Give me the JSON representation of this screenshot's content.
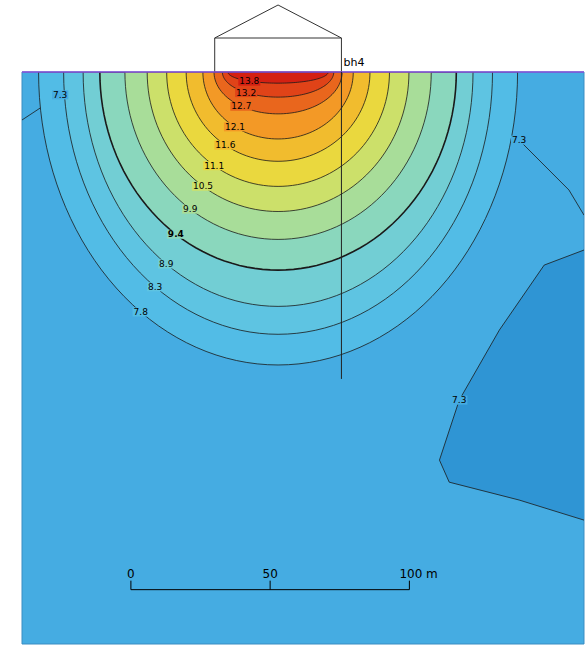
{
  "chart_data": {
    "type": "contour",
    "xlim": [
      -39.1,
      162.7
    ],
    "ylim": [
      0,
      205
    ],
    "tick_labels": false,
    "grid": false,
    "contours": [
      {
        "level": 7.8,
        "half_width": 86,
        "depth": 105
      },
      {
        "level": 8.3,
        "half_width": 77,
        "depth": 94
      },
      {
        "level": 8.9,
        "half_width": 70,
        "depth": 84
      },
      {
        "level": 9.4,
        "half_width": 64,
        "depth": 71
      },
      {
        "level": 9.9,
        "half_width": 55,
        "depth": 60
      },
      {
        "level": 10.5,
        "half_width": 47,
        "depth": 50
      },
      {
        "level": 11.1,
        "half_width": 40,
        "depth": 41
      },
      {
        "level": 11.6,
        "half_width": 33,
        "depth": 32
      },
      {
        "level": 12.1,
        "half_width": 27,
        "depth": 24
      },
      {
        "level": 12.7,
        "half_width": 23,
        "depth": 15
      },
      {
        "level": 13.2,
        "half_width": 20,
        "depth": 9
      },
      {
        "level": 13.8,
        "half_width": 18,
        "depth": 4
      }
    ],
    "open_contours": [
      {
        "level": 7.3,
        "points": [
          [
            -39.1,
            17.2
          ],
          [
            -25.4,
            8.2
          ],
          [
            -3.9,
            2.9
          ],
          [
            24.7,
            0.7
          ]
        ]
      },
      {
        "level": 7.3,
        "points": [
          [
            76.7,
            0.7
          ],
          [
            107.2,
            6.5
          ],
          [
            139.4,
            24.4
          ],
          [
            157.3,
            42.3
          ],
          [
            162.7,
            51.3
          ]
        ]
      },
      {
        "level": 7.3,
        "points": [
          [
            162.7,
            63.8
          ],
          [
            148.4,
            69.2
          ],
          [
            132.3,
            92.5
          ],
          [
            117.9,
            117.6
          ],
          [
            110.8,
            139.1
          ],
          [
            114.3,
            147
          ],
          [
            139.4,
            153.4
          ],
          [
            162.7,
            160.6
          ]
        ]
      }
    ],
    "building": {
      "x": [
        30.1,
        75.6
      ]
    },
    "borehole": {
      "label": "bh4",
      "x": 75.6,
      "depth": 110
    },
    "scale_bar": {
      "ticks": [
        0,
        50,
        {
          "value": 100,
          "label": "100 m"
        }
      ]
    }
  }
}
